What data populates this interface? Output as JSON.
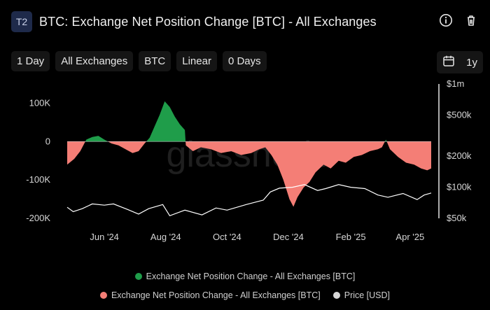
{
  "header": {
    "badge": "T2",
    "title": "BTC: Exchange Net Position Change [BTC] - All Exchanges",
    "icons": [
      "info-icon",
      "trash-icon"
    ]
  },
  "filters": [
    "1 Day",
    "All Exchanges",
    "BTC",
    "Linear",
    "0 Days"
  ],
  "range": {
    "label": "1y",
    "icon": "calendar-icon"
  },
  "watermark": "glassnode",
  "colors": {
    "positive": "#1f9d4a",
    "negative": "#f47e76",
    "price": "#ffffff",
    "grid": "#2a2a2a",
    "text": "#d6d6d6"
  },
  "chart_data": {
    "type": "area",
    "title": "BTC: Exchange Net Position Change [BTC] - All Exchanges",
    "x_range": [
      "2024-04-25",
      "2025-04-22"
    ],
    "x_ticks": [
      {
        "date": "2024-06-01",
        "label": "Jun '24"
      },
      {
        "date": "2024-08-01",
        "label": "Aug '24"
      },
      {
        "date": "2024-10-01",
        "label": "Oct '24"
      },
      {
        "date": "2024-12-01",
        "label": "Dec '24"
      },
      {
        "date": "2025-02-01",
        "label": "Feb '25"
      },
      {
        "date": "2025-04-01",
        "label": "Apr '25"
      }
    ],
    "y_left": {
      "range": [
        -200000,
        150000
      ],
      "ticks": [
        100000,
        0,
        -100000,
        -200000
      ],
      "tick_labels": [
        "100K",
        "0",
        "-100K",
        "-200K"
      ]
    },
    "y_right": {
      "scale": "log",
      "range": [
        50000,
        1000000
      ],
      "ticks": [
        1000000,
        500000,
        200000,
        100000,
        50000
      ],
      "tick_labels": [
        "$1m",
        "$500k",
        "$200k",
        "$100k",
        "$50k"
      ]
    },
    "legend": {
      "placement": "bottom"
    },
    "series": [
      {
        "name": "Exchange Net Position Change - All Exchanges [BTC]",
        "axis": "left",
        "color_positive": "#1f9d4a",
        "color_negative": "#f47e76",
        "points": [
          [
            "2024-04-25",
            -60000
          ],
          [
            "2024-05-02",
            -45000
          ],
          [
            "2024-05-08",
            -25000
          ],
          [
            "2024-05-14",
            5000
          ],
          [
            "2024-05-20",
            12000
          ],
          [
            "2024-05-26",
            15000
          ],
          [
            "2024-06-01",
            5000
          ],
          [
            "2024-06-08",
            -5000
          ],
          [
            "2024-06-15",
            -10000
          ],
          [
            "2024-06-22",
            -20000
          ],
          [
            "2024-06-29",
            -30000
          ],
          [
            "2024-07-05",
            -25000
          ],
          [
            "2024-07-11",
            -5000
          ],
          [
            "2024-07-16",
            10000
          ],
          [
            "2024-07-21",
            40000
          ],
          [
            "2024-07-26",
            70000
          ],
          [
            "2024-07-31",
            105000
          ],
          [
            "2024-08-05",
            90000
          ],
          [
            "2024-08-10",
            65000
          ],
          [
            "2024-08-15",
            45000
          ],
          [
            "2024-08-20",
            30000
          ],
          [
            "2024-08-21",
            -10000
          ],
          [
            "2024-08-28",
            -25000
          ],
          [
            "2024-09-05",
            -15000
          ],
          [
            "2024-09-15",
            -20000
          ],
          [
            "2024-09-25",
            -30000
          ],
          [
            "2024-10-05",
            -25000
          ],
          [
            "2024-10-15",
            -35000
          ],
          [
            "2024-10-25",
            -30000
          ],
          [
            "2024-11-02",
            -20000
          ],
          [
            "2024-11-08",
            -15000
          ],
          [
            "2024-11-14",
            -35000
          ],
          [
            "2024-11-20",
            -60000
          ],
          [
            "2024-11-26",
            -100000
          ],
          [
            "2024-12-02",
            -150000
          ],
          [
            "2024-12-06",
            -170000
          ],
          [
            "2024-12-10",
            -145000
          ],
          [
            "2024-12-16",
            -120000
          ],
          [
            "2024-12-22",
            -105000
          ],
          [
            "2024-12-28",
            -80000
          ],
          [
            "2025-01-05",
            -60000
          ],
          [
            "2025-01-12",
            -70000
          ],
          [
            "2025-01-20",
            -50000
          ],
          [
            "2025-01-27",
            -55000
          ],
          [
            "2025-02-04",
            -40000
          ],
          [
            "2025-02-12",
            -35000
          ],
          [
            "2025-02-20",
            -25000
          ],
          [
            "2025-02-28",
            -20000
          ],
          [
            "2025-03-04",
            -15000
          ],
          [
            "2025-03-08",
            5000
          ],
          [
            "2025-03-12",
            -20000
          ],
          [
            "2025-03-20",
            -40000
          ],
          [
            "2025-03-28",
            -55000
          ],
          [
            "2025-04-05",
            -60000
          ],
          [
            "2025-04-12",
            -70000
          ],
          [
            "2025-04-18",
            -75000
          ],
          [
            "2025-04-22",
            -70000
          ]
        ]
      },
      {
        "name": "Price [USD]",
        "axis": "right",
        "color": "#ffffff",
        "points": [
          [
            "2024-04-25",
            64000
          ],
          [
            "2024-05-01",
            58000
          ],
          [
            "2024-05-10",
            62000
          ],
          [
            "2024-05-20",
            69000
          ],
          [
            "2024-06-01",
            67000
          ],
          [
            "2024-06-10",
            69000
          ],
          [
            "2024-06-24",
            61000
          ],
          [
            "2024-07-05",
            55000
          ],
          [
            "2024-07-15",
            62000
          ],
          [
            "2024-07-29",
            68000
          ],
          [
            "2024-08-05",
            53000
          ],
          [
            "2024-08-20",
            60000
          ],
          [
            "2024-09-06",
            54000
          ],
          [
            "2024-09-20",
            63000
          ],
          [
            "2024-10-01",
            60000
          ],
          [
            "2024-10-20",
            68000
          ],
          [
            "2024-10-30",
            72000
          ],
          [
            "2024-11-06",
            75000
          ],
          [
            "2024-11-13",
            90000
          ],
          [
            "2024-11-22",
            98000
          ],
          [
            "2024-12-05",
            100000
          ],
          [
            "2024-12-17",
            106000
          ],
          [
            "2024-12-30",
            93000
          ],
          [
            "2025-01-07",
            97000
          ],
          [
            "2025-01-20",
            106000
          ],
          [
            "2025-02-01",
            100000
          ],
          [
            "2025-02-15",
            97000
          ],
          [
            "2025-02-28",
            84000
          ],
          [
            "2025-03-10",
            80000
          ],
          [
            "2025-03-25",
            87000
          ],
          [
            "2025-04-08",
            76000
          ],
          [
            "2025-04-15",
            84000
          ],
          [
            "2025-04-22",
            88000
          ]
        ]
      }
    ]
  }
}
